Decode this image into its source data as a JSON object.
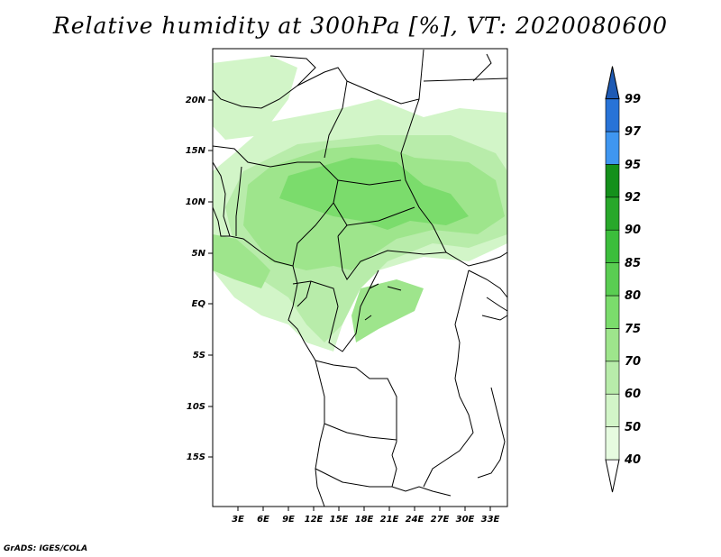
{
  "title": "Relative humidity at 300hPa [%], VT: 2020080600",
  "credit": "GrADS: IGES/COLA",
  "lat_labels": [
    "20N",
    "15N",
    "10N",
    "5N",
    "EQ",
    "5S",
    "10S",
    "15S"
  ],
  "lon_labels": [
    "3E",
    "6E",
    "9E",
    "12E",
    "15E",
    "18E",
    "21E",
    "24E",
    "27E",
    "30E",
    "33E"
  ],
  "colorbar": {
    "levels": [
      "40",
      "50",
      "60",
      "70",
      "75",
      "80",
      "85",
      "90",
      "92",
      "95",
      "97",
      "99"
    ],
    "colors": [
      "#ffffff",
      "#e6fbe0",
      "#d2f5c8",
      "#b8ecaa",
      "#9ee58c",
      "#7bdc6c",
      "#5acd52",
      "#3cbe3c",
      "#28a82a",
      "#14901b",
      "#3f96f0",
      "#2873d7",
      "#1e5ab4"
    ]
  }
}
